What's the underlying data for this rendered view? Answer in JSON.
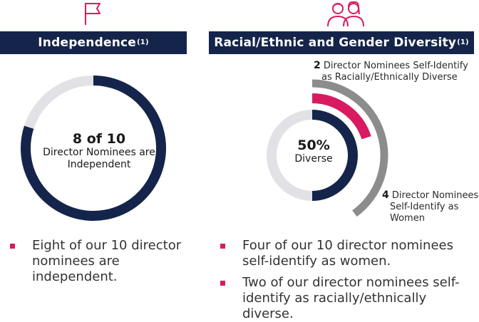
{
  "colors": {
    "navy": "#15244a",
    "light_gray": "#e2e2e6",
    "mid_gray": "#8c8c8c",
    "magenta": "#d81b60"
  },
  "icons": {
    "left": "flag-icon",
    "right": "people-icon"
  },
  "left": {
    "header": "Independence",
    "header_note": "(1)",
    "center_big": "8 of 10",
    "center_line1": "Director Nominees are",
    "center_line2": "Independent",
    "bullets": [
      "Eight of our 10 director nominees are independent."
    ]
  },
  "right": {
    "header": "Racial/Ethnic and Gender Diversity",
    "header_note": "(1)",
    "center_big": "50%",
    "center_small": "Diverse",
    "callout_top_num": "2",
    "callout_top_line1": "Director Nominees Self-Identify",
    "callout_top_line2": "as Racially/Ethnically Diverse",
    "callout_bottom_num": "4",
    "callout_bottom_line1": "Director Nominees",
    "callout_bottom_line2": "Self-Identify as",
    "callout_bottom_line3": "Women",
    "bullets": [
      "Four of our 10 director nominees self-identify as women.",
      "Two of our director nominees self-identify as racially/ethnically diverse."
    ]
  },
  "chart_data": [
    {
      "type": "pie",
      "total": 10,
      "slices": [
        {
          "label": "Independent",
          "value": 8
        },
        {
          "label": "Not independent",
          "value": 2
        }
      ]
    },
    {
      "type": "pie",
      "total": 10,
      "rings": [
        {
          "label": "Diverse",
          "value": 5
        },
        {
          "label": "Racially/Ethnically Diverse",
          "value": 2
        },
        {
          "label": "Women",
          "value": 4
        }
      ]
    }
  ]
}
